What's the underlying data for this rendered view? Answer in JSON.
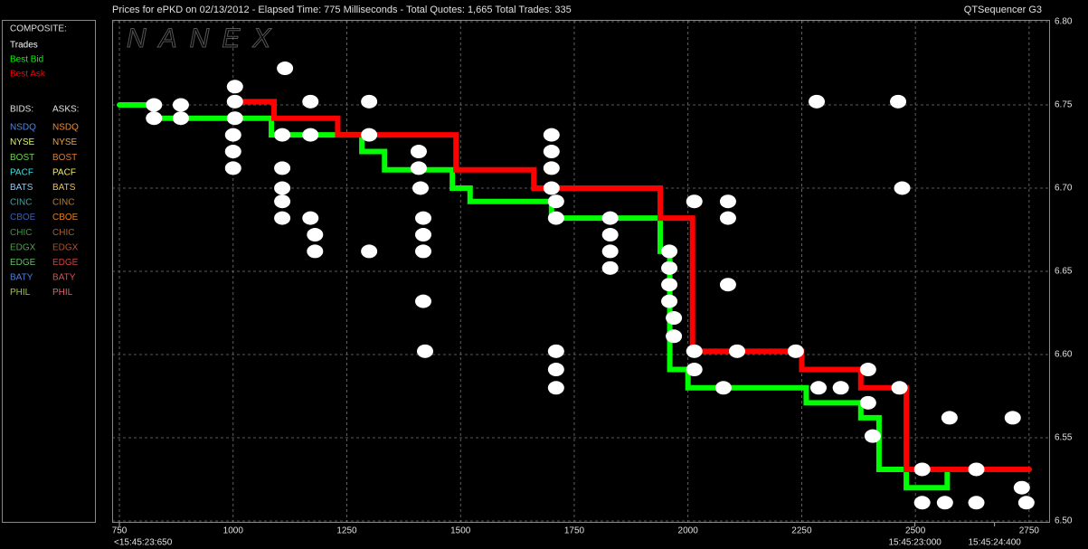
{
  "chart_data": {
    "type": "line",
    "title": "Prices for  ePKD  on  02/13/2012  -  Elapsed Time: 775 Milliseconds  -  Total Quotes: 1,665  Total Trades: 335",
    "subtitle": "QTSequencer G3",
    "watermark": "NANEX",
    "xlim": [
      734,
      2794
    ],
    "ylim": [
      6.5,
      6.8
    ],
    "xticks": [
      750,
      1000,
      1250,
      1500,
      1750,
      2000,
      2250,
      2500,
      2750
    ],
    "yticks": [
      {
        "value": 6.5,
        "label": "6.50"
      },
      {
        "value": 6.55,
        "label": "6.55"
      },
      {
        "value": 6.6,
        "label": "6.60"
      },
      {
        "value": 6.65,
        "label": "6.65"
      },
      {
        "value": 6.7,
        "label": "6.70"
      },
      {
        "value": 6.75,
        "label": "6.75"
      },
      {
        "value": 6.8,
        "label": "6.80"
      }
    ],
    "time_ticks": [
      {
        "value": 750,
        "label": "<15:45:23:650"
      },
      {
        "value": 2499,
        "label": "15:45:23:000"
      },
      {
        "value": 2674,
        "label": "15:45:24:400"
      }
    ],
    "grid": true,
    "legend": {
      "composite_title": "COMPOSITE:",
      "bids_title": "BIDS:",
      "asks_title": "ASKS:",
      "exchanges": [
        {
          "bid": "NSDQ",
          "bid_color": "#4f86e0",
          "ask": "NSDQ",
          "ask_color": "#f08a30"
        },
        {
          "bid": "NYSE",
          "bid_color": "#d8f070",
          "ask": "NYSE",
          "ask_color": "#f0a040"
        },
        {
          "bid": "BOST",
          "bid_color": "#70d050",
          "ask": "BOST",
          "ask_color": "#e07a30"
        },
        {
          "bid": "PACF",
          "bid_color": "#40e0e0",
          "ask": "PACF",
          "ask_color": "#f0f060"
        },
        {
          "bid": "BATS",
          "bid_color": "#90c8f0",
          "ask": "BATS",
          "ask_color": "#f0c050"
        },
        {
          "bid": "CINC",
          "bid_color": "#40a0a0",
          "ask": "CINC",
          "ask_color": "#b08040"
        },
        {
          "bid": "CBOE",
          "bid_color": "#3060c0",
          "ask": "CBOE",
          "ask_color": "#e08020"
        },
        {
          "bid": "CHIC",
          "bid_color": "#409040",
          "ask": "CHIC",
          "ask_color": "#a06030"
        },
        {
          "bid": "EDGX",
          "bid_color": "#50a050",
          "ask": "EDGX",
          "ask_color": "#b05030"
        },
        {
          "bid": "EDGE",
          "bid_color": "#60c060",
          "ask": "EDGE",
          "ask_color": "#d04040"
        },
        {
          "bid": "BATY",
          "bid_color": "#5080e0",
          "ask": "BATY",
          "ask_color": "#e05050"
        },
        {
          "bid": "PHIL",
          "bid_color": "#a0c060",
          "ask": "PHIL",
          "ask_color": "#e06070"
        }
      ]
    },
    "series": [
      {
        "name": "Trades",
        "color": "#ffffff",
        "marker": "dot",
        "x": [
          826,
          826,
          885,
          885,
          1004,
          1004,
          1004,
          1000,
          1000,
          1000,
          1114,
          1108,
          1108,
          1108,
          1108,
          1108,
          1170,
          1170,
          1170,
          1180,
          1180,
          1299,
          1299,
          1299,
          1408,
          1408,
          1412,
          1418,
          1418,
          1418,
          1418,
          1422,
          1700,
          1700,
          1700,
          1700,
          1710,
          1710,
          1710,
          1710,
          1710,
          1829,
          1829,
          1829,
          1829,
          1959,
          1959,
          1959,
          1959,
          1969,
          1969,
          2014,
          2014,
          2014,
          2088,
          2088,
          2088,
          2108,
          2078,
          2237,
          2283,
          2287,
          2336,
          2396,
          2396,
          2406,
          2462,
          2471,
          2465,
          2515,
          2515,
          2575,
          2565,
          2634,
          2634,
          2714,
          2734,
          2744
        ],
        "values": [
          6.75,
          6.742,
          6.742,
          6.75,
          6.761,
          6.752,
          6.742,
          6.732,
          6.722,
          6.712,
          6.772,
          6.732,
          6.712,
          6.7,
          6.692,
          6.682,
          6.752,
          6.732,
          6.682,
          6.672,
          6.662,
          6.752,
          6.732,
          6.662,
          6.722,
          6.712,
          6.7,
          6.682,
          6.672,
          6.662,
          6.632,
          6.602,
          6.732,
          6.722,
          6.712,
          6.7,
          6.692,
          6.682,
          6.602,
          6.591,
          6.58,
          6.682,
          6.672,
          6.662,
          6.652,
          6.662,
          6.652,
          6.642,
          6.632,
          6.622,
          6.611,
          6.602,
          6.591,
          6.692,
          6.692,
          6.682,
          6.642,
          6.602,
          6.58,
          6.602,
          6.752,
          6.58,
          6.58,
          6.591,
          6.571,
          6.551,
          6.752,
          6.7,
          6.58,
          6.531,
          6.511,
          6.562,
          6.511,
          6.531,
          6.511,
          6.562,
          6.52,
          6.511
        ]
      },
      {
        "name": "Best Bid",
        "color": "#00ff00",
        "marker": "line",
        "x": [
          750,
          825,
          825,
          1084,
          1084,
          1283,
          1283,
          1333,
          1333,
          1482,
          1482,
          1521,
          1521,
          1700,
          1700,
          1939,
          1939,
          1960,
          1960,
          2000,
          2000,
          2260,
          2260,
          2380,
          2380,
          2420,
          2420,
          2480,
          2480,
          2570,
          2570,
          2750
        ],
        "values": [
          6.75,
          6.75,
          6.742,
          6.742,
          6.732,
          6.732,
          6.722,
          6.722,
          6.711,
          6.711,
          6.7,
          6.7,
          6.692,
          6.692,
          6.682,
          6.682,
          6.662,
          6.662,
          6.591,
          6.591,
          6.58,
          6.58,
          6.571,
          6.571,
          6.562,
          6.562,
          6.531,
          6.531,
          6.52,
          6.52,
          6.531,
          6.531
        ]
      },
      {
        "name": "Best Ask",
        "color": "#ff0000",
        "marker": "line",
        "x": [
          1010,
          1090,
          1090,
          1230,
          1230,
          1490,
          1490,
          1661,
          1661,
          1939,
          1939,
          2010,
          2010,
          2250,
          2250,
          2380,
          2380,
          2480,
          2480,
          2750
        ],
        "values": [
          6.752,
          6.752,
          6.742,
          6.742,
          6.732,
          6.732,
          6.711,
          6.711,
          6.7,
          6.7,
          6.682,
          6.682,
          6.602,
          6.602,
          6.591,
          6.591,
          6.58,
          6.58,
          6.531,
          6.531
        ]
      }
    ]
  }
}
